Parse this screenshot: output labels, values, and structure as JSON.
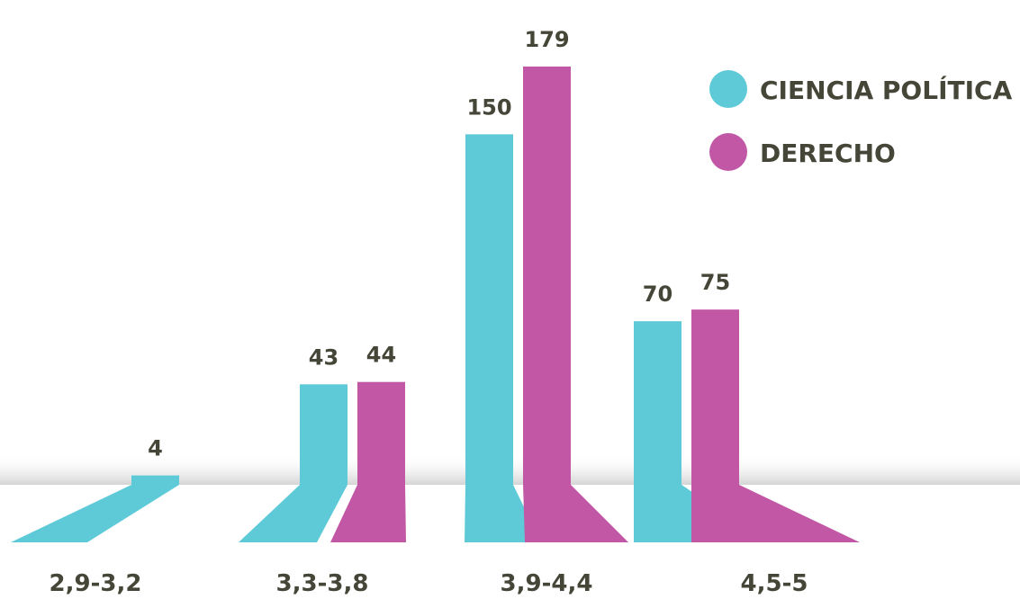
{
  "chart_data": {
    "type": "bar",
    "categories": [
      "2,9-3,2",
      "3,3-3,8",
      "3,9-4,4",
      "4,5-5"
    ],
    "series": [
      {
        "name": "CIENCIA POLÍTICA",
        "color": "#5ECAD8",
        "values": [
          4,
          43,
          150,
          70
        ]
      },
      {
        "name": "DERECHO",
        "color": "#C257A6",
        "values": [
          null,
          44,
          179,
          75
        ]
      }
    ],
    "data_labels": [
      [
        "4",
        "43",
        "150",
        "70"
      ],
      [
        "",
        "44",
        "179",
        "75"
      ]
    ],
    "legend_position": "top-right",
    "ylim": [
      0,
      179
    ],
    "grid": false
  },
  "colors": {
    "text": "#454637",
    "floor_shadow": "#d9d9d9"
  }
}
